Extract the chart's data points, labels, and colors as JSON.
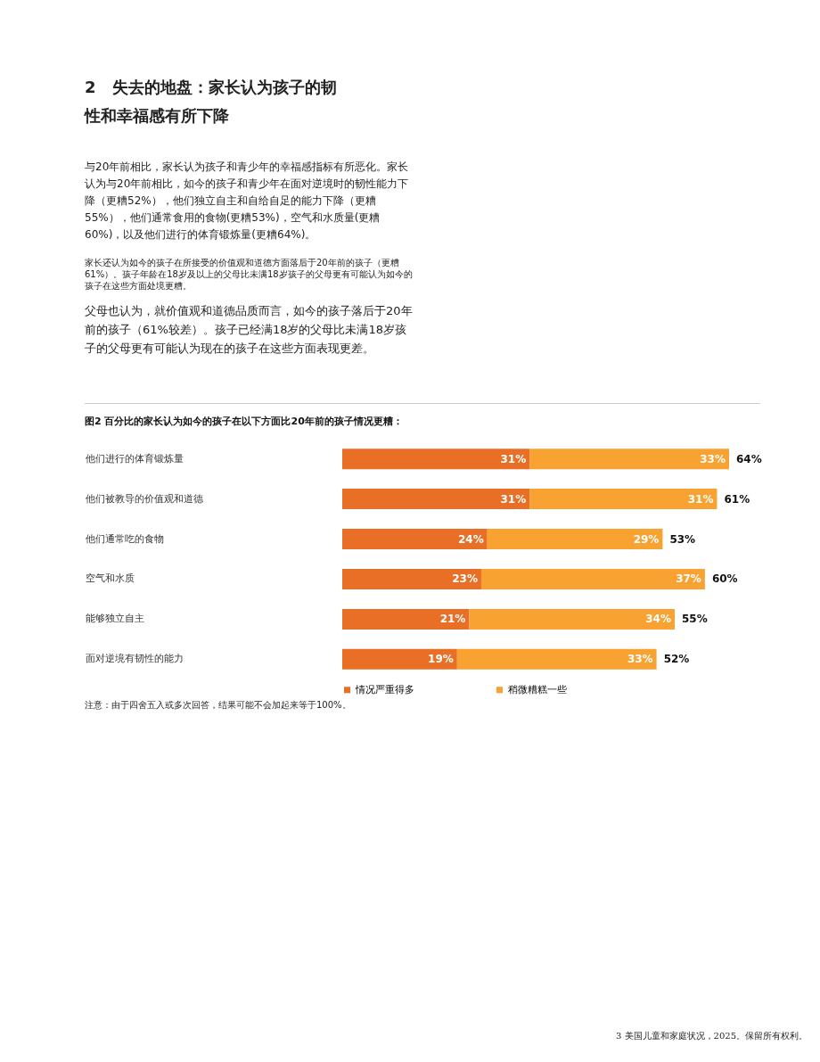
{
  "chart_data": {
    "type": "bar",
    "orientation": "horizontal",
    "stacked": true,
    "legend": "bottom",
    "title": "图2 百分比的家长认为如今的孩子在以下方面比20年前的孩子情况更糟：",
    "categories": [
      "他们进行的体育锻炼量",
      "他们被教导的价值观和道德",
      "他们通常吃的食物",
      "空气和水质",
      "能够独立自主",
      "面对逆境有韧性的能力"
    ],
    "series": [
      {
        "name": "情况严重得多",
        "color": "#e86f25",
        "values": [
          31,
          31,
          24,
          23,
          21,
          19
        ],
        "value_labels": [
          "31%",
          "31%",
          "24%",
          "23%",
          "21%",
          "19%"
        ]
      },
      {
        "name": "稍微糟糕一些",
        "color": "#f7a231",
        "values": [
          33,
          31,
          29,
          37,
          34,
          33
        ],
        "value_labels": [
          "33%",
          "31%",
          "29%",
          "37%",
          "34%",
          "33%"
        ]
      }
    ],
    "totals": [
      "64%",
      "61%",
      "53%",
      "60%",
      "55%",
      "52%"
    ],
    "annotations": [
      "2　失去的地盘：家长认为孩子的韧性和幸福感有所下降",
      "与20年前相比，家长认为孩子和青少年的幸福感指标有所恶化。家长认为与20年前相比，如今的孩子和青少年在面对逆境时的韧性能力下降（更糟52%），他们独立自主和自给自足的能力下降（更糟55%），他们通常食用的食物(更糟53%)，空气和水质量(更糟60%)，以及他们进行的体育锻炼量(更糟64%)。",
      "家长还认为如今的孩子在所接受的价值观和道德方面落后于20年前的孩子（更糟61%）。孩子年龄在18岁及以上的父母比未满18岁孩子的父母更有可能认为如今的孩子在这些方面处境更糟。",
      "父母也认为，就价值观和道德品质而言，如今的孩子落后于20年前的孩子（61%较差）。孩子已经满18岁的父母比未满18岁孩子的父母更有可能认为现在的孩子在这些方面表现更差。",
      "注意：由于四舍五入或多次回答，结果可能不会加起来等于100%。",
      "3 美国儿童和家庭状况，2025。保留所有权利。"
    ]
  }
}
